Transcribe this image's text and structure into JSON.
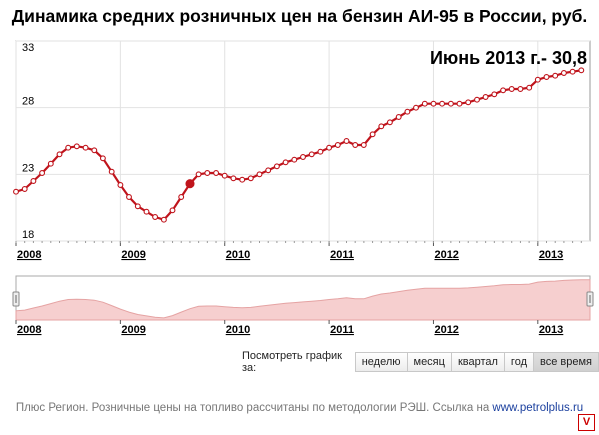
{
  "title": "Динамика средних розничных цен на бензин АИ-95 в России, руб.",
  "annotation": "Июнь 2013 г.- 30,8",
  "colors": {
    "line": "#c0141c",
    "navigator_fill": "#f6cfcf",
    "navigator_line": "#e5a3a3",
    "axis_label": "#000000"
  },
  "chart_data": {
    "type": "line",
    "title": "Динамика средних розничных цен на бензин АИ-95 в России, руб.",
    "xlabel": "",
    "ylabel": "",
    "ylim": [
      18,
      33
    ],
    "xlim": [
      2008.0,
      2013.5
    ],
    "yticks": [
      "33",
      "28",
      "23",
      "18"
    ],
    "xticks": [
      "2008",
      "2009",
      "2010",
      "2011",
      "2012",
      "2013"
    ],
    "grid": true,
    "series": [
      {
        "x": [
          2008.0,
          2008.083,
          2008.167,
          2008.25,
          2008.333,
          2008.417,
          2008.5,
          2008.583,
          2008.667,
          2008.75,
          2008.833,
          2008.917,
          2009.0,
          2009.083,
          2009.167,
          2009.25,
          2009.333,
          2009.417,
          2009.5,
          2009.583,
          2009.667,
          2009.75,
          2009.833,
          2009.917,
          2010.0,
          2010.083,
          2010.167,
          2010.25,
          2010.333,
          2010.417,
          2010.5,
          2010.583,
          2010.667,
          2010.75,
          2010.833,
          2010.917,
          2011.0,
          2011.083,
          2011.167,
          2011.25,
          2011.333,
          2011.417,
          2011.5,
          2011.583,
          2011.667,
          2011.75,
          2011.833,
          2011.917,
          2012.0,
          2012.083,
          2012.167,
          2012.25,
          2012.333,
          2012.417,
          2012.5,
          2012.583,
          2012.667,
          2012.75,
          2012.833,
          2012.917,
          2013.0,
          2013.083,
          2013.167,
          2013.25,
          2013.333,
          2013.417
        ],
        "values": [
          21.7,
          21.9,
          22.5,
          23.1,
          23.8,
          24.5,
          25.0,
          25.1,
          25.0,
          24.8,
          24.2,
          23.2,
          22.2,
          21.3,
          20.6,
          20.2,
          19.8,
          19.6,
          20.3,
          21.3,
          22.3,
          23.0,
          23.1,
          23.1,
          22.9,
          22.7,
          22.6,
          22.7,
          23.0,
          23.3,
          23.6,
          23.9,
          24.1,
          24.3,
          24.5,
          24.7,
          25.0,
          25.2,
          25.5,
          25.2,
          25.2,
          26.0,
          26.6,
          26.9,
          27.3,
          27.7,
          28.0,
          28.3,
          28.3,
          28.3,
          28.3,
          28.3,
          28.4,
          28.6,
          28.8,
          29.0,
          29.3,
          29.4,
          29.4,
          29.5,
          30.1,
          30.3,
          30.4,
          30.6,
          30.7,
          30.8
        ]
      }
    ]
  },
  "navigator": {
    "xticks": [
      "2008",
      "2009",
      "2010",
      "2011",
      "2012",
      "2013"
    ]
  },
  "range_selector": {
    "label": "Посмотреть график за:",
    "buttons": [
      "неделю",
      "месяц",
      "квартал",
      "год",
      "все время"
    ],
    "active_index": 4
  },
  "footer": {
    "text": "Плюс Регион. Розничные цены на топливо рассчитаны по методологии РЭШ. Ссылка на ",
    "link": "www.petrolplus.ru"
  },
  "corner_logo": "V"
}
